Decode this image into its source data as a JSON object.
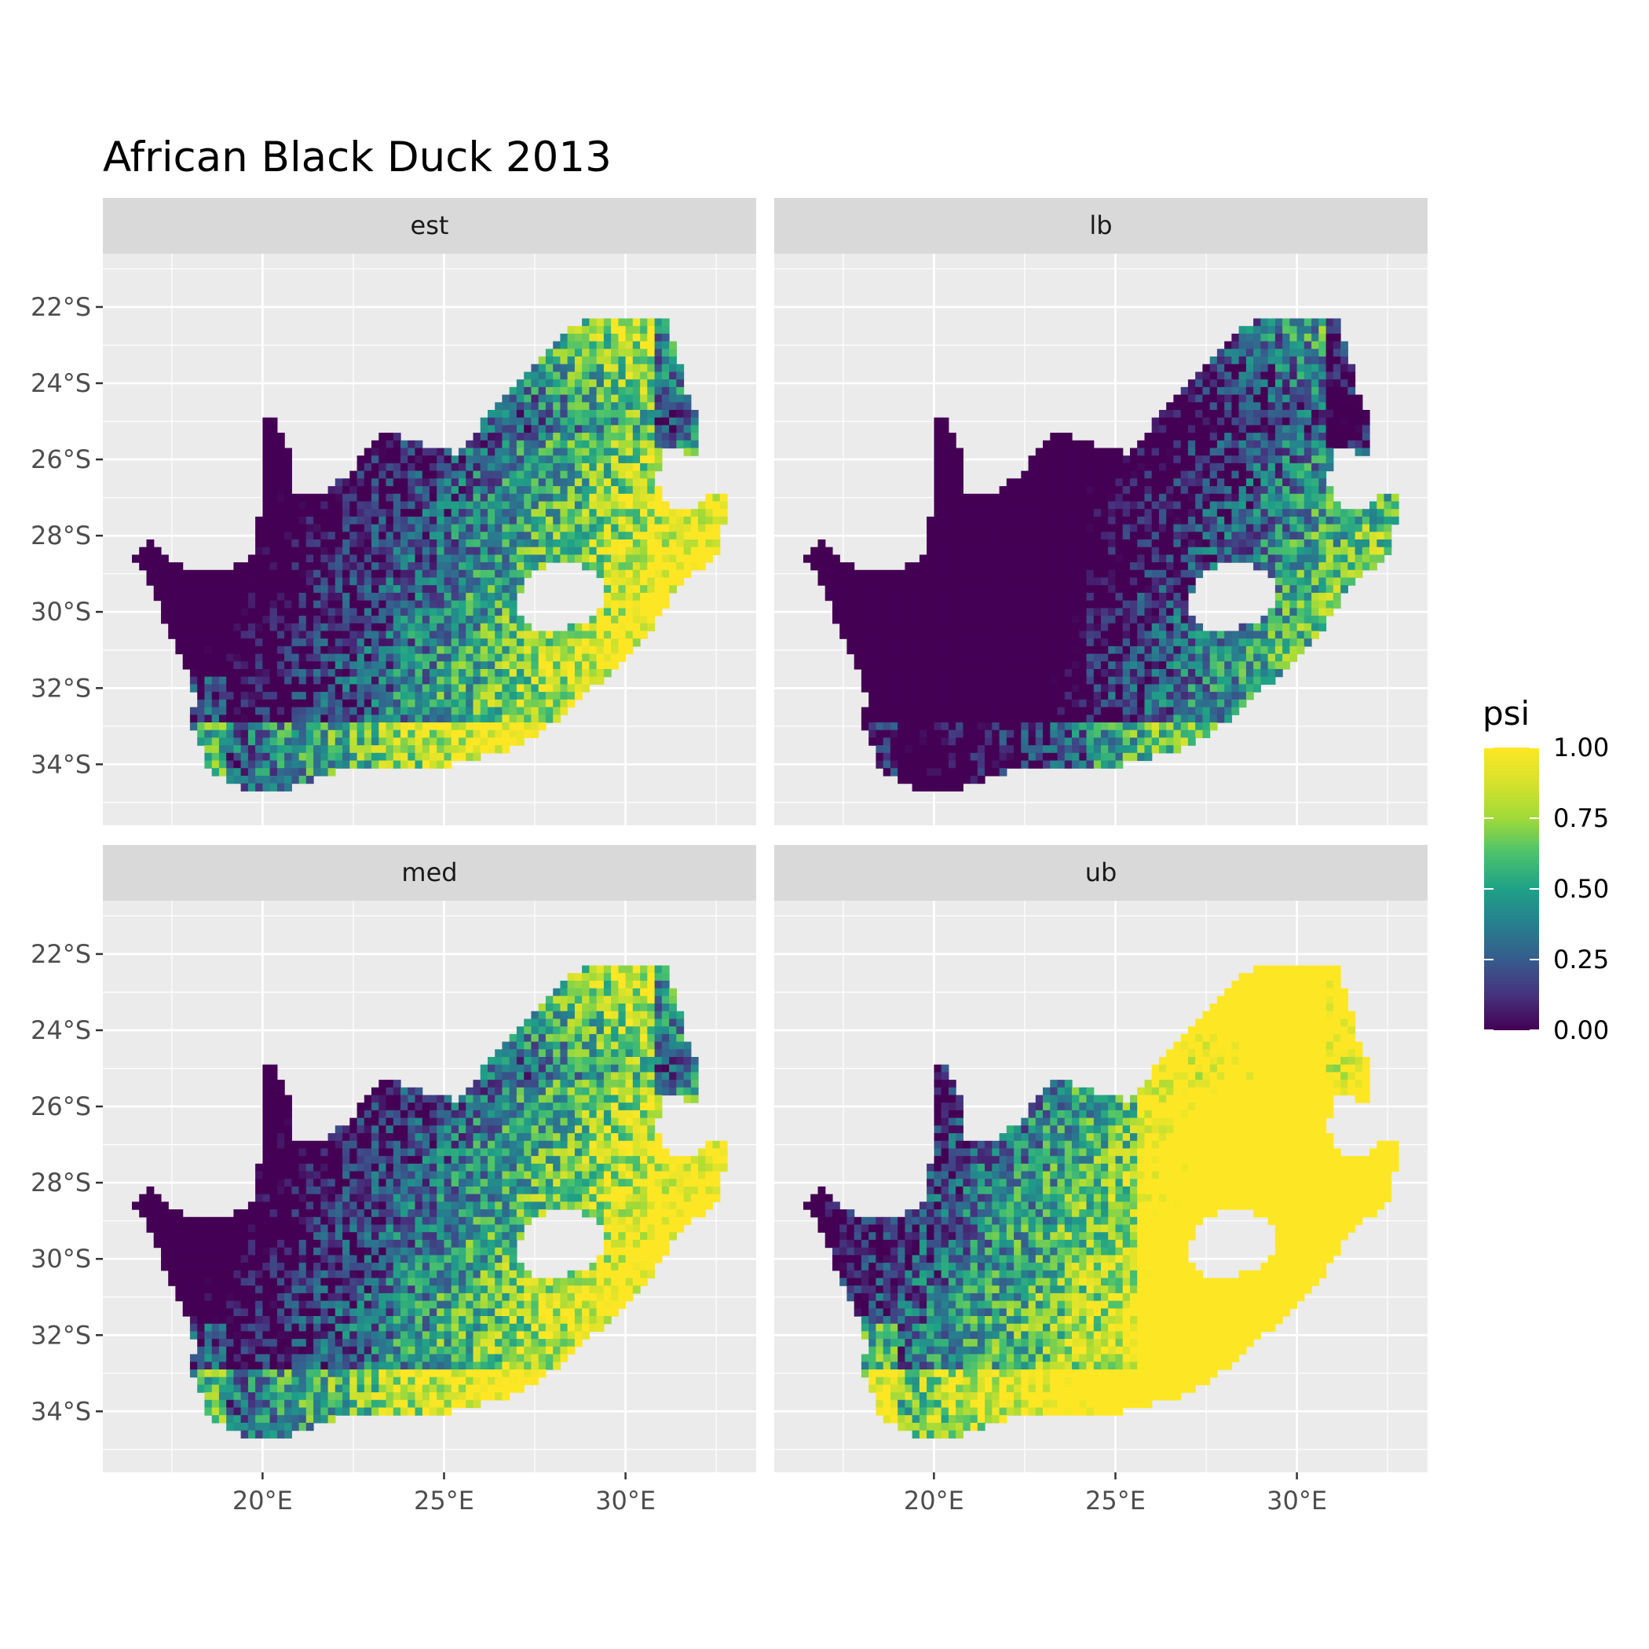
{
  "chart_data": {
    "type": "heatmap",
    "title": "African Black Duck 2013",
    "xlabel": "",
    "ylabel": "",
    "x_ticks": [
      "20°E",
      "25°E",
      "30°E"
    ],
    "y_ticks": [
      "22°S",
      "24°S",
      "26°S",
      "28°S",
      "30°S",
      "32°S",
      "34°S"
    ],
    "xlim": [
      15.6,
      33.6
    ],
    "ylim": [
      -35.6,
      -20.6
    ],
    "x_tick_values": [
      20,
      25,
      30
    ],
    "y_tick_values": [
      -22,
      -24,
      -26,
      -28,
      -30,
      -32,
      -34
    ],
    "grid": true,
    "panels": [
      {
        "label": "est",
        "mean_level": 0.55
      },
      {
        "label": "lb",
        "mean_level": 0.32
      },
      {
        "label": "med",
        "mean_level": 0.58
      },
      {
        "label": "ub",
        "mean_level": 0.8
      }
    ],
    "legend": {
      "title": "psi",
      "labels": [
        "1.00",
        "0.75",
        "0.50",
        "0.25",
        "0.00"
      ],
      "values": [
        1.0,
        0.75,
        0.5,
        0.25,
        0.0
      ],
      "colormap": "viridis",
      "placement": "right"
    },
    "colors": {
      "panel_bg": "#ebebeb",
      "strip_bg": "#d9d9d9",
      "grid": "#ffffff",
      "viridis_low": "#440154",
      "viridis_mid": "#21918c",
      "viridis_high": "#fde725"
    }
  }
}
